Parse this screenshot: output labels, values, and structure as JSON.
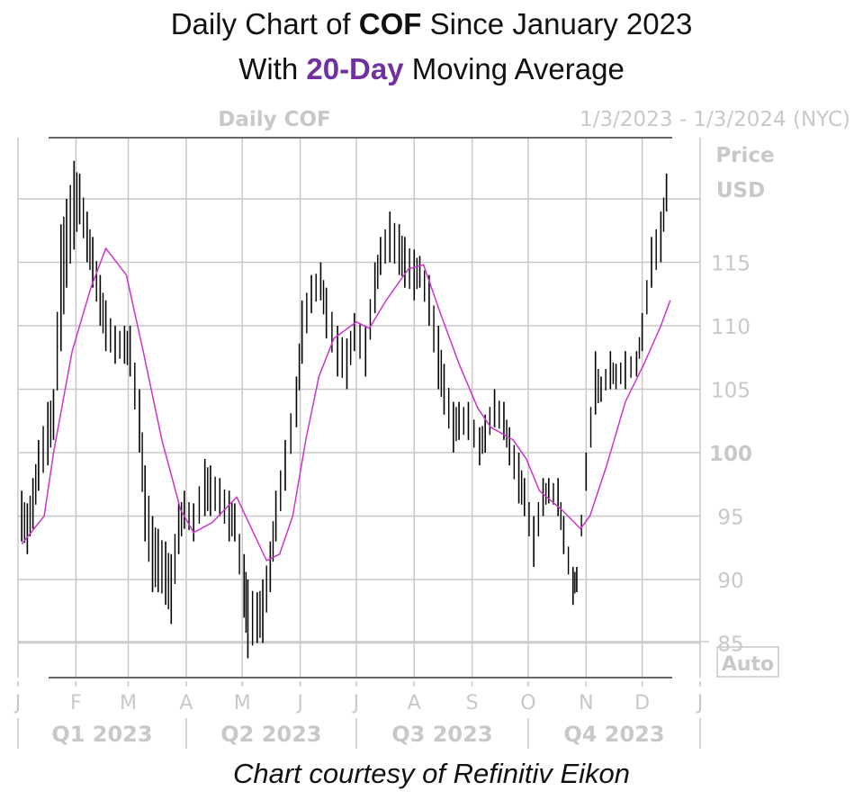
{
  "title": {
    "line1_pre": "Daily Chart of ",
    "line1_bold": "COF",
    "line1_post": " Since January 2023",
    "line2_pre": "With ",
    "line2_accent": "20-Day",
    "line2_post": " Moving Average"
  },
  "footer": "Chart courtesy of Refinitiv Eikon",
  "colors": {
    "accent": "#7030a0",
    "ma_line": "#cc33cc",
    "bars": "#000000",
    "grid": "#c8c8c8",
    "axis_text": "#c8c8c8"
  },
  "chart_data": {
    "type": "ohlc-bar",
    "header_left": "Daily COF",
    "header_right": "1/3/2023 - 1/3/2024 (NYC)",
    "ylabel": [
      "Price",
      "USD"
    ],
    "auto_label": "Auto",
    "ylim": [
      82,
      125
    ],
    "yticks": [
      85,
      90,
      95,
      100,
      105,
      110,
      115,
      120
    ],
    "ytick_labels": [
      "85",
      "90",
      "95",
      "100",
      "105",
      "110",
      "115",
      ""
    ],
    "xlim": [
      "2023-01-01",
      "2024-01-01"
    ],
    "month_ticks": [
      {
        "date": "2023-01-01",
        "label": "J"
      },
      {
        "date": "2023-02-01",
        "label": "F"
      },
      {
        "date": "2023-03-01",
        "label": "M"
      },
      {
        "date": "2023-04-01",
        "label": "A"
      },
      {
        "date": "2023-05-01",
        "label": "M"
      },
      {
        "date": "2023-06-01",
        "label": "J"
      },
      {
        "date": "2023-07-01",
        "label": "J"
      },
      {
        "date": "2023-08-01",
        "label": "A"
      },
      {
        "date": "2023-09-01",
        "label": "S"
      },
      {
        "date": "2023-10-01",
        "label": "O"
      },
      {
        "date": "2023-11-01",
        "label": "N"
      },
      {
        "date": "2023-12-01",
        "label": "D"
      },
      {
        "date": "2024-01-01",
        "label": "J"
      }
    ],
    "quarters": [
      {
        "start": "2023-01-01",
        "end": "2023-04-01",
        "label": "Q1 2023"
      },
      {
        "start": "2023-04-01",
        "end": "2023-07-01",
        "label": "Q2 2023"
      },
      {
        "start": "2023-07-01",
        "end": "2023-10-01",
        "label": "Q3 2023"
      },
      {
        "start": "2023-10-01",
        "end": "2024-01-01",
        "label": "Q4 2023"
      }
    ],
    "grid": true,
    "series": [
      {
        "kind": "price-bars",
        "fields": [
          "date",
          "low",
          "high"
        ],
        "values": [
          [
            "2023-01-03",
            93,
            97
          ],
          [
            "2023-01-06",
            92,
            96
          ],
          [
            "2023-01-09",
            94,
            98
          ],
          [
            "2023-01-12",
            97,
            101
          ],
          [
            "2023-01-17",
            99,
            104
          ],
          [
            "2023-01-20",
            101,
            105
          ],
          [
            "2023-01-24",
            108,
            118
          ],
          [
            "2023-01-27",
            113,
            120
          ],
          [
            "2023-01-31",
            116,
            123
          ],
          [
            "2023-02-03",
            118,
            122
          ],
          [
            "2023-02-07",
            115,
            119
          ],
          [
            "2023-02-10",
            113,
            117
          ],
          [
            "2023-02-14",
            110,
            114
          ],
          [
            "2023-02-17",
            108,
            112
          ],
          [
            "2023-02-22",
            107,
            110
          ],
          [
            "2023-02-27",
            107,
            110
          ],
          [
            "2023-03-02",
            106,
            110
          ],
          [
            "2023-03-07",
            100,
            105
          ],
          [
            "2023-03-10",
            93,
            99
          ],
          [
            "2023-03-14",
            89,
            95
          ],
          [
            "2023-03-17",
            89,
            94
          ],
          [
            "2023-03-21",
            88,
            93
          ],
          [
            "2023-03-24",
            86.5,
            92
          ],
          [
            "2023-03-28",
            92,
            96
          ],
          [
            "2023-03-31",
            94,
            97
          ],
          [
            "2023-04-05",
            93,
            96
          ],
          [
            "2023-04-11",
            95,
            99.5
          ],
          [
            "2023-04-14",
            95,
            99
          ],
          [
            "2023-04-19",
            95,
            98
          ],
          [
            "2023-04-24",
            93,
            97
          ],
          [
            "2023-04-27",
            93,
            96
          ],
          [
            "2023-05-02",
            87,
            92
          ],
          [
            "2023-05-04",
            83.8,
            90
          ],
          [
            "2023-05-09",
            85,
            89
          ],
          [
            "2023-05-12",
            85,
            90
          ],
          [
            "2023-05-16",
            89,
            93
          ],
          [
            "2023-05-19",
            93,
            97
          ],
          [
            "2023-05-24",
            97,
            101
          ],
          [
            "2023-05-30",
            102,
            106
          ],
          [
            "2023-06-02",
            107,
            112
          ],
          [
            "2023-06-07",
            111,
            114
          ],
          [
            "2023-06-12",
            112,
            115
          ],
          [
            "2023-06-15",
            109,
            113
          ],
          [
            "2023-06-21",
            106,
            110
          ],
          [
            "2023-06-26",
            105,
            109
          ],
          [
            "2023-06-30",
            108,
            111
          ],
          [
            "2023-07-06",
            106,
            110
          ],
          [
            "2023-07-11",
            111,
            115
          ],
          [
            "2023-07-14",
            114,
            117
          ],
          [
            "2023-07-19",
            115,
            119
          ],
          [
            "2023-07-24",
            114,
            118
          ],
          [
            "2023-07-27",
            113,
            117
          ],
          [
            "2023-08-01",
            112,
            116
          ],
          [
            "2023-08-04",
            113,
            115.5
          ],
          [
            "2023-08-09",
            110,
            114
          ],
          [
            "2023-08-14",
            105,
            110
          ],
          [
            "2023-08-17",
            103,
            107
          ],
          [
            "2023-08-22",
            100,
            104
          ],
          [
            "2023-08-25",
            101,
            104
          ],
          [
            "2023-08-30",
            101,
            104
          ],
          [
            "2023-09-05",
            99,
            102
          ],
          [
            "2023-09-08",
            100,
            103
          ],
          [
            "2023-09-13",
            102,
            105
          ],
          [
            "2023-09-18",
            101,
            104
          ],
          [
            "2023-09-21",
            99,
            102
          ],
          [
            "2023-09-26",
            96,
            100
          ],
          [
            "2023-09-29",
            95,
            98
          ],
          [
            "2023-10-04",
            91,
            95
          ],
          [
            "2023-10-09",
            95,
            98
          ],
          [
            "2023-10-12",
            96,
            98
          ],
          [
            "2023-10-17",
            95,
            98
          ],
          [
            "2023-10-20",
            92,
            95
          ],
          [
            "2023-10-25",
            88,
            91
          ],
          [
            "2023-10-27",
            89,
            91
          ],
          [
            "2023-11-01",
            97,
            100
          ],
          [
            "2023-11-06",
            103,
            108
          ],
          [
            "2023-11-09",
            104,
            106
          ],
          [
            "2023-11-14",
            105,
            108
          ],
          [
            "2023-11-17",
            105,
            107
          ],
          [
            "2023-11-22",
            105,
            108
          ],
          [
            "2023-11-28",
            106,
            108
          ],
          [
            "2023-12-01",
            108,
            111
          ],
          [
            "2023-12-06",
            113,
            117
          ],
          [
            "2023-12-11",
            115,
            119
          ],
          [
            "2023-12-14",
            119,
            122
          ]
        ]
      },
      {
        "kind": "line",
        "name": "20-Day",
        "fields": [
          "date",
          "value"
        ],
        "values": [
          [
            "2023-01-03",
            92.8
          ],
          [
            "2023-01-15",
            95
          ],
          [
            "2023-01-20",
            100
          ],
          [
            "2023-01-30",
            108
          ],
          [
            "2023-02-09",
            113
          ],
          [
            "2023-02-17",
            116.1
          ],
          [
            "2023-02-28",
            114
          ],
          [
            "2023-03-09",
            108
          ],
          [
            "2023-03-19",
            101
          ],
          [
            "2023-03-29",
            95.5
          ],
          [
            "2023-04-05",
            93.7
          ],
          [
            "2023-04-15",
            94.5
          ],
          [
            "2023-04-28",
            96.5
          ],
          [
            "2023-05-06",
            94
          ],
          [
            "2023-05-14",
            91.5
          ],
          [
            "2023-05-21",
            92
          ],
          [
            "2023-05-28",
            95
          ],
          [
            "2023-06-04",
            101
          ],
          [
            "2023-06-11",
            106
          ],
          [
            "2023-06-19",
            109
          ],
          [
            "2023-07-01",
            110.3
          ],
          [
            "2023-07-08",
            109.8
          ],
          [
            "2023-07-17",
            112
          ],
          [
            "2023-07-29",
            114.5
          ],
          [
            "2023-08-06",
            114.8
          ],
          [
            "2023-08-15",
            111
          ],
          [
            "2023-08-25",
            107
          ],
          [
            "2023-09-04",
            103.5
          ],
          [
            "2023-09-11",
            102
          ],
          [
            "2023-09-23",
            101
          ],
          [
            "2023-09-30",
            99.5
          ],
          [
            "2023-10-07",
            97
          ],
          [
            "2023-10-19",
            95.5
          ],
          [
            "2023-10-29",
            94
          ],
          [
            "2023-11-03",
            95
          ],
          [
            "2023-11-12",
            99
          ],
          [
            "2023-11-22",
            104
          ],
          [
            "2023-12-02",
            107
          ],
          [
            "2023-12-11",
            110
          ],
          [
            "2023-12-16",
            112
          ]
        ]
      }
    ]
  }
}
